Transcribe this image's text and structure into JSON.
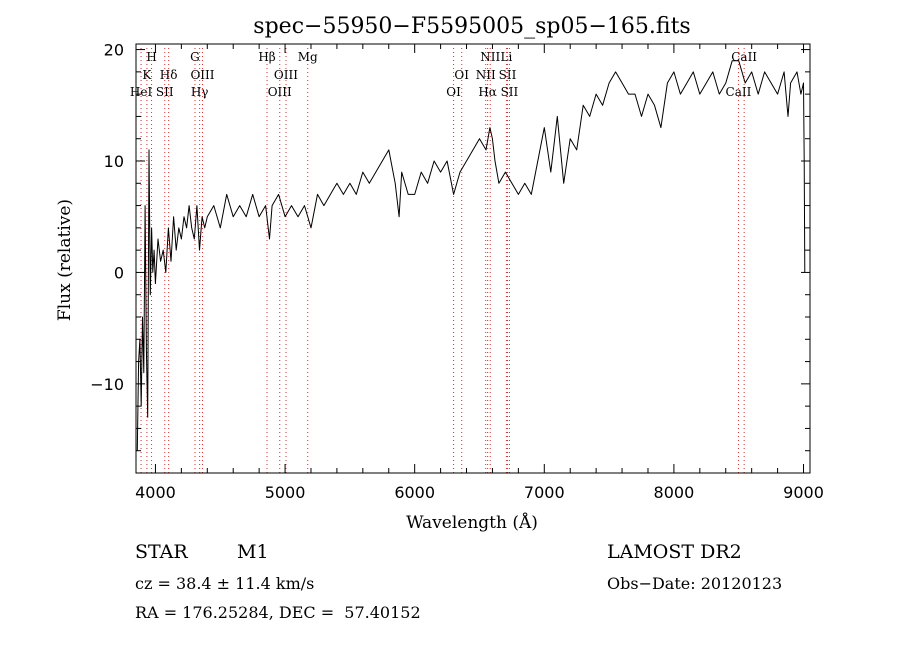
{
  "chart_data": {
    "type": "line",
    "title": "spec−55950−F5595005_sp05−165.fits",
    "xlabel": "Wavelength (Å)",
    "ylabel": "Flux (relative)",
    "xlim": [
      3850,
      9050
    ],
    "ylim": [
      -18,
      20.5
    ],
    "xticks": [
      4000,
      5000,
      6000,
      7000,
      8000,
      9000
    ],
    "yticks": [
      -10,
      0,
      10,
      20
    ],
    "yticklabels": [
      "−10",
      "0",
      "10",
      "20"
    ],
    "grid": false,
    "colors": {
      "line": "#000000",
      "markers": "#cc3333"
    },
    "series": [
      {
        "x": [
          3860,
          3870,
          3880,
          3890,
          3900,
          3910,
          3920,
          3930,
          3940,
          3950,
          3960,
          3970,
          3980,
          3990,
          4000,
          4020,
          4040,
          4060,
          4080,
          4100,
          4120,
          4140,
          4160,
          4180,
          4200,
          4220,
          4240,
          4260,
          4280,
          4300,
          4320,
          4340,
          4360,
          4380,
          4400,
          4450,
          4500,
          4550,
          4600,
          4650,
          4700,
          4750,
          4800,
          4850,
          4880,
          4900,
          4950,
          5000,
          5050,
          5100,
          5150,
          5200,
          5250,
          5300,
          5350,
          5400,
          5450,
          5500,
          5550,
          5600,
          5650,
          5700,
          5750,
          5800,
          5850,
          5880,
          5900,
          5950,
          6000,
          6050,
          6100,
          6150,
          6200,
          6250,
          6300,
          6350,
          6400,
          6450,
          6500,
          6550,
          6580,
          6600,
          6620,
          6650,
          6700,
          6750,
          6800,
          6850,
          6900,
          6950,
          7000,
          7050,
          7100,
          7150,
          7200,
          7250,
          7300,
          7350,
          7400,
          7450,
          7500,
          7550,
          7600,
          7650,
          7700,
          7750,
          7800,
          7850,
          7900,
          7950,
          8000,
          8050,
          8100,
          8150,
          8200,
          8250,
          8300,
          8350,
          8400,
          8450,
          8500,
          8550,
          8600,
          8650,
          8700,
          8750,
          8800,
          8850,
          8880,
          8900,
          8950,
          8980,
          9000,
          9005,
          9010
        ],
        "y": [
          -16,
          -8,
          -6,
          -12,
          -4,
          -9,
          6,
          -7,
          -13,
          11,
          -2,
          4,
          0,
          2,
          -1,
          3,
          1,
          2,
          0,
          4,
          1,
          5,
          2,
          4,
          3,
          5,
          4,
          6,
          4,
          3,
          6,
          2,
          5,
          4,
          5,
          6,
          4,
          7,
          5,
          6,
          5,
          7,
          5,
          6,
          3,
          6,
          7,
          5,
          6,
          5,
          6,
          4,
          7,
          6,
          7,
          8,
          7,
          8,
          7,
          9,
          8,
          9,
          10,
          11,
          8,
          5,
          9,
          7,
          7,
          9,
          8,
          10,
          9,
          10,
          7,
          9,
          10,
          11,
          12,
          11,
          13,
          12,
          10,
          8,
          9,
          8,
          7,
          8,
          7,
          10,
          13,
          9,
          14,
          8,
          12,
          11,
          15,
          14,
          16,
          15,
          17,
          18,
          17,
          16,
          16,
          14,
          16,
          15,
          13,
          17,
          18,
          16,
          17,
          18,
          16,
          17,
          18,
          16,
          17,
          19,
          19,
          17,
          18,
          16,
          18,
          17,
          16,
          18,
          14,
          17,
          18,
          16,
          17,
          10,
          0
        ]
      }
    ],
    "line_markers": [
      {
        "label": "H",
        "wavelength": 3970,
        "row": 0
      },
      {
        "label": "K",
        "wavelength": 3934,
        "row": 1
      },
      {
        "label": "HeI",
        "wavelength": 3889,
        "row": 2
      },
      {
        "label": "Hδ",
        "wavelength": 4102,
        "row": 1
      },
      {
        "label": "SII",
        "wavelength": 4072,
        "row": 2
      },
      {
        "label": "G",
        "wavelength": 4305,
        "row": 0
      },
      {
        "label": "OIII",
        "wavelength": 4363,
        "row": 1
      },
      {
        "label": "Hγ",
        "wavelength": 4341,
        "row": 2
      },
      {
        "label": "Hβ",
        "wavelength": 4861,
        "row": 0
      },
      {
        "label": "OIII",
        "wavelength": 5007,
        "row": 1
      },
      {
        "label": "OIII",
        "wavelength": 4959,
        "row": 2
      },
      {
        "label": "Mg",
        "wavelength": 5175,
        "row": 0
      },
      {
        "label": "OI",
        "wavelength": 6363,
        "row": 1
      },
      {
        "label": "OI",
        "wavelength": 6300,
        "row": 2
      },
      {
        "label": "NII",
        "wavelength": 6583,
        "row": 0
      },
      {
        "label": "Li",
        "wavelength": 6708,
        "row": 0
      },
      {
        "label": "NII",
        "wavelength": 6548,
        "row": 1
      },
      {
        "label": "SII",
        "wavelength": 6716,
        "row": 1
      },
      {
        "label": "Hα",
        "wavelength": 6563,
        "row": 2
      },
      {
        "label": "SII",
        "wavelength": 6731,
        "row": 2
      },
      {
        "label": "CaII",
        "wavelength": 8542,
        "row": 0
      },
      {
        "label": "CaII",
        "wavelength": 8498,
        "row": 2
      }
    ]
  },
  "info": {
    "class": "STAR",
    "subclass": "M1",
    "survey": "LAMOST DR2",
    "cz": "cz = 38.4 ± 11.4 km/s",
    "obs_date": "Obs−Date: 20120123",
    "coords": "RA = 176.25284, DEC =  57.40152"
  }
}
